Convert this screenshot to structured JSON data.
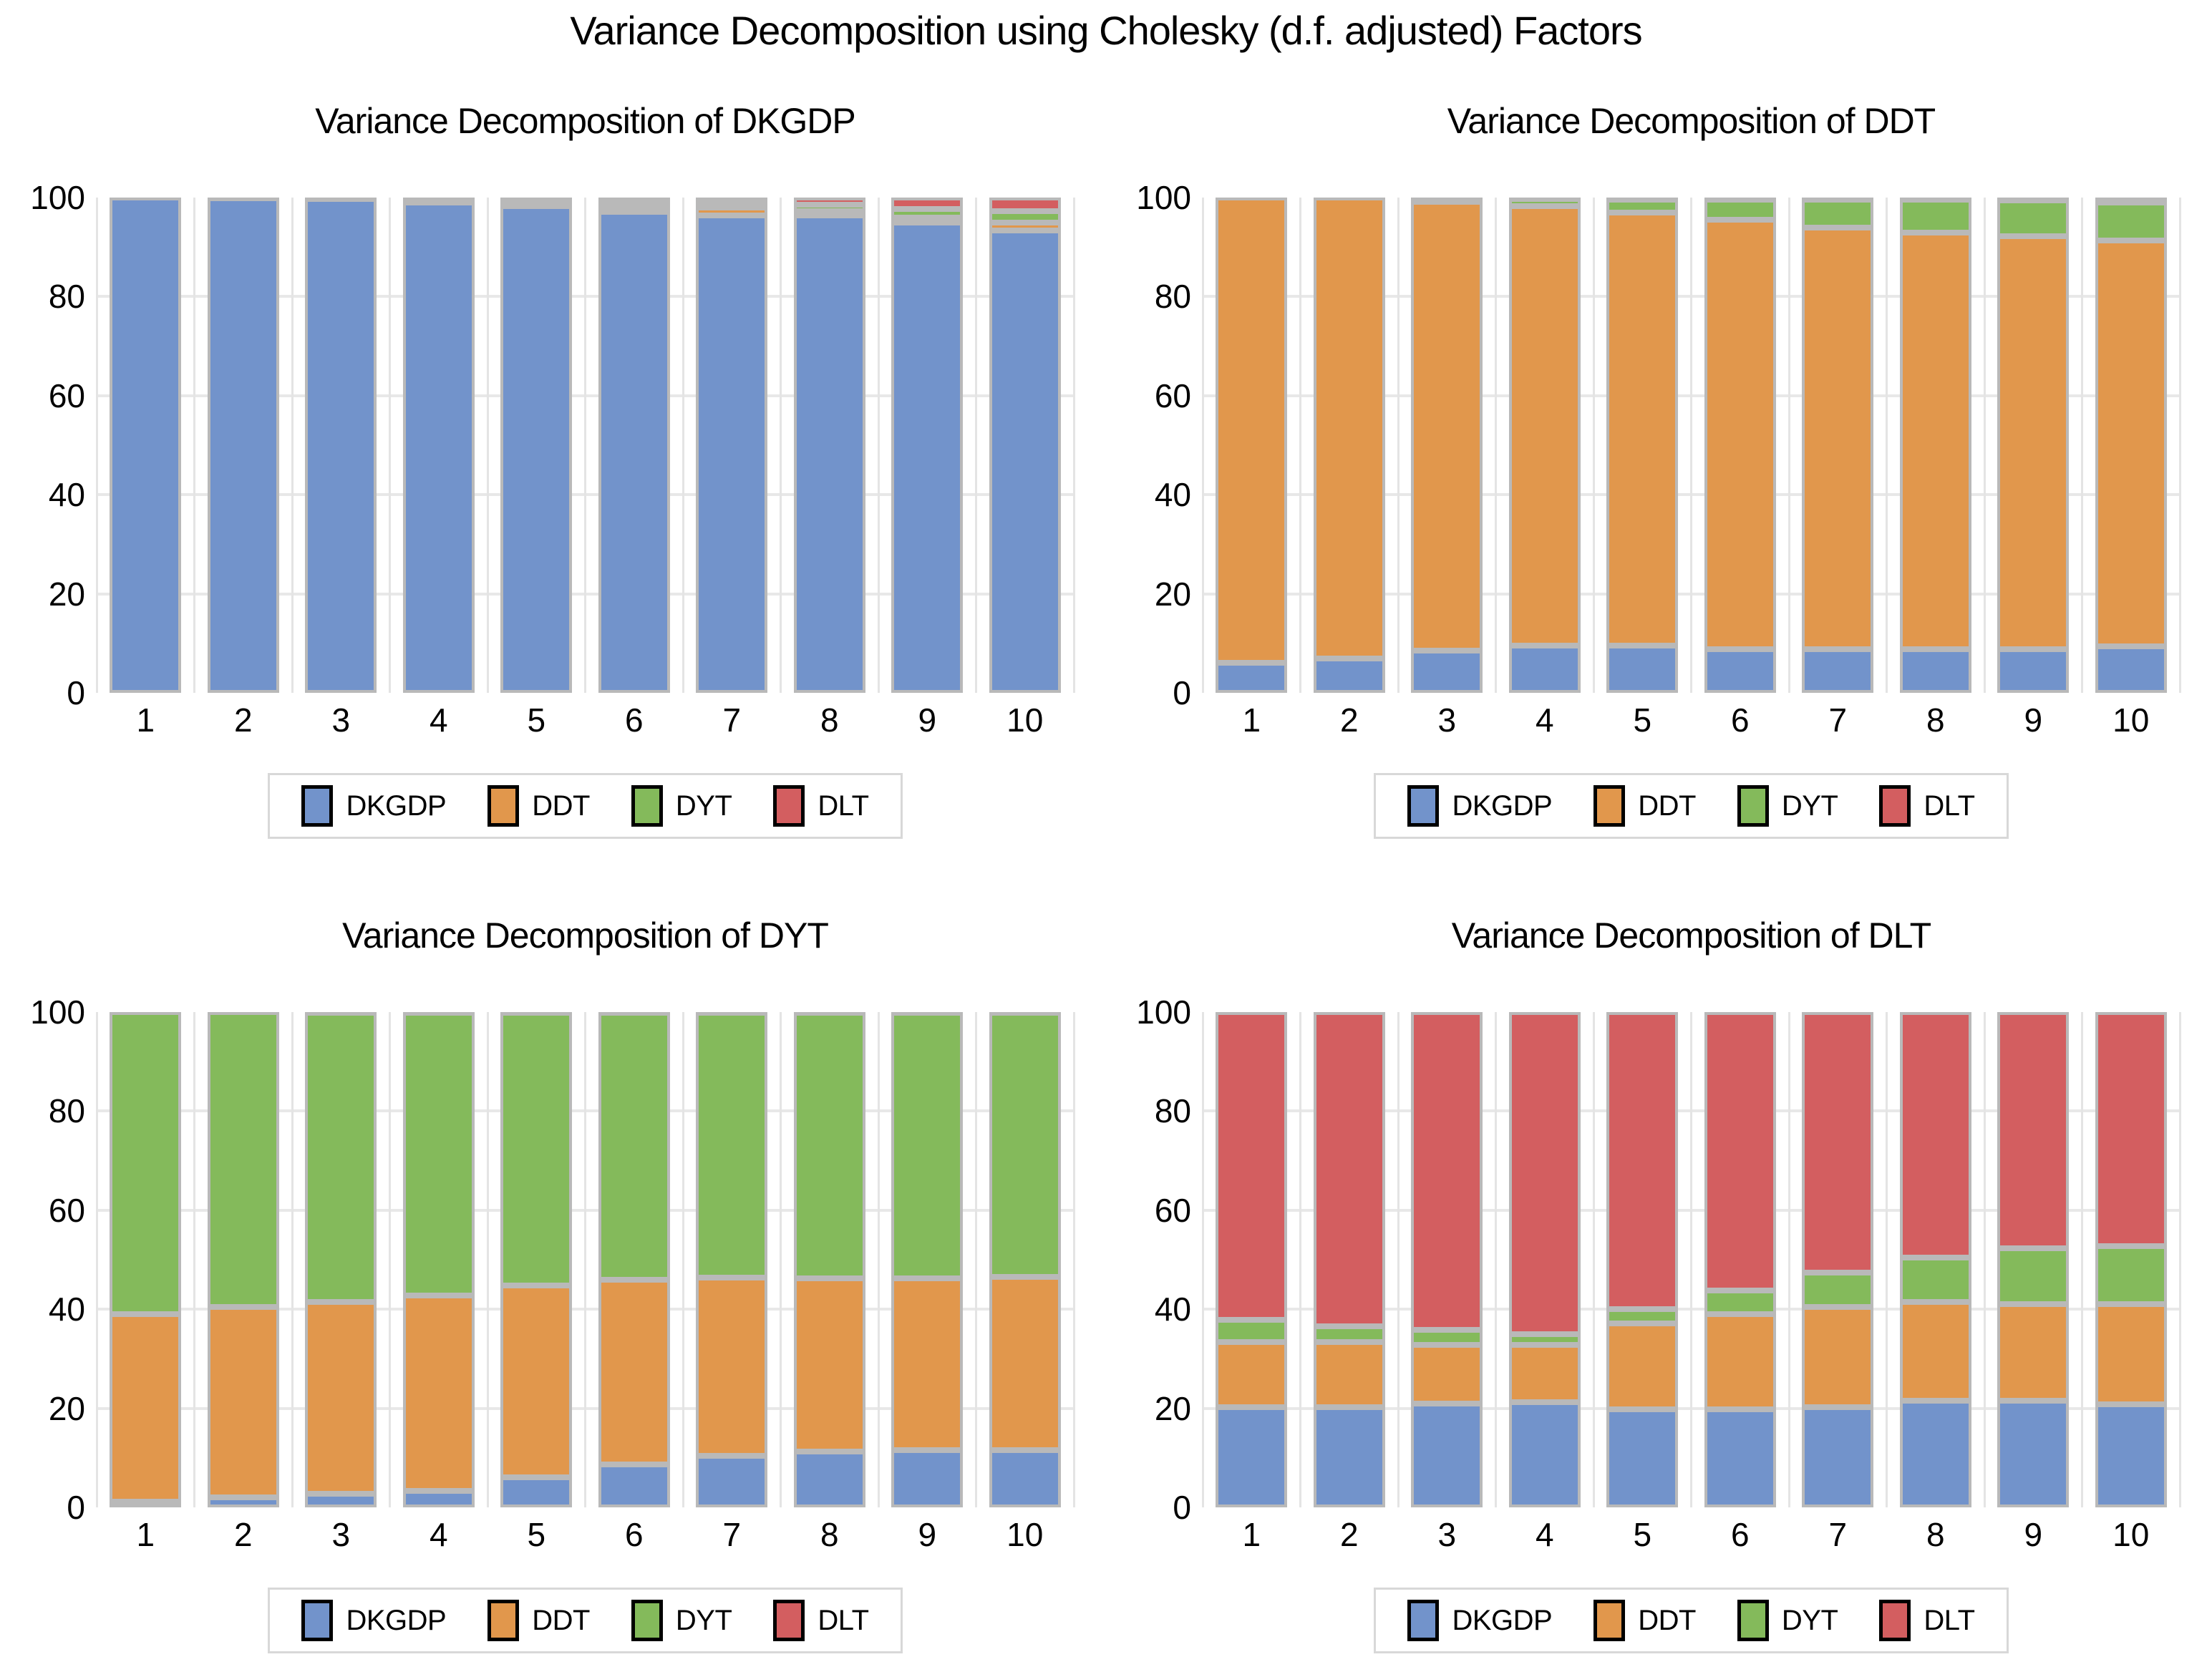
{
  "page_title": "Variance Decomposition using Cholesky (d.f. adjusted) Factors",
  "colors": {
    "DKGDP": "#7293cb",
    "DDT": "#e1974c",
    "DYT": "#84ba5b",
    "DLT": "#d35e60",
    "bar_border": "#b9b9b9",
    "gridline": "#e8e8e8",
    "legend_border": "#d8d8d8"
  },
  "legend_labels": [
    "DKGDP",
    "DDT",
    "DYT",
    "DLT"
  ],
  "chart_data": [
    {
      "type": "bar",
      "stacked": true,
      "title": "Variance Decomposition of DKGDP",
      "categories": [
        "1",
        "2",
        "3",
        "4",
        "5",
        "6",
        "7",
        "8",
        "9",
        "10"
      ],
      "xlabel": "",
      "ylabel": "",
      "ylim": [
        0,
        100
      ],
      "yticks": [
        0,
        20,
        40,
        60,
        80,
        100
      ],
      "grid": true,
      "legend_position": "bottom",
      "series": [
        {
          "name": "DKGDP",
          "color": "#7293cb",
          "values": [
            100,
            99.9,
            99.7,
            99.0,
            98.3,
            97.1,
            96.4,
            96.4,
            95.0,
            93.3
          ]
        },
        {
          "name": "DDT",
          "color": "#e1974c",
          "values": [
            0,
            0.1,
            0.2,
            0.5,
            0.7,
            1.2,
            1.6,
            0.8,
            1.0,
            1.7
          ]
        },
        {
          "name": "DYT",
          "color": "#84ba5b",
          "values": [
            0,
            0,
            0.05,
            0.25,
            0.5,
            0.8,
            1.0,
            1.3,
            1.7,
            2.2
          ]
        },
        {
          "name": "DLT",
          "color": "#d35e60",
          "values": [
            0,
            0,
            0.05,
            0.25,
            0.5,
            0.9,
            1.0,
            1.5,
            2.3,
            2.8
          ]
        }
      ]
    },
    {
      "type": "bar",
      "stacked": true,
      "title": "Variance Decomposition of DDT",
      "categories": [
        "1",
        "2",
        "3",
        "4",
        "5",
        "6",
        "7",
        "8",
        "9",
        "10"
      ],
      "xlabel": "",
      "ylabel": "",
      "ylim": [
        0,
        100
      ],
      "yticks": [
        0,
        20,
        40,
        60,
        80,
        100
      ],
      "grid": true,
      "legend_position": "bottom",
      "series": [
        {
          "name": "DKGDP",
          "color": "#7293cb",
          "values": [
            6.0,
            7.0,
            8.5,
            9.5,
            9.5,
            8.8,
            8.8,
            8.8,
            8.8,
            9.4
          ]
        },
        {
          "name": "DDT",
          "color": "#e1974c",
          "values": [
            94.0,
            93.0,
            90.6,
            88.8,
            87.4,
            86.7,
            85.2,
            84.1,
            83.4,
            81.9
          ]
        },
        {
          "name": "DYT",
          "color": "#84ba5b",
          "values": [
            0,
            0,
            0.6,
            1.4,
            2.7,
            4.1,
            5.6,
            6.6,
            7.2,
            7.7
          ]
        },
        {
          "name": "DLT",
          "color": "#d35e60",
          "values": [
            0,
            0,
            0.3,
            0.3,
            0.4,
            0.4,
            0.4,
            0.5,
            0.6,
            1.0
          ]
        }
      ]
    },
    {
      "type": "bar",
      "stacked": true,
      "title": "Variance Decomposition of DYT",
      "categories": [
        "1",
        "2",
        "3",
        "4",
        "5",
        "6",
        "7",
        "8",
        "9",
        "10"
      ],
      "xlabel": "",
      "ylabel": "",
      "ylim": [
        0,
        100
      ],
      "yticks": [
        0,
        20,
        40,
        60,
        80,
        100
      ],
      "grid": true,
      "legend_position": "bottom",
      "series": [
        {
          "name": "DKGDP",
          "color": "#7293cb",
          "values": [
            1.2,
            2.0,
            2.8,
            3.3,
            6.0,
            8.7,
            10.4,
            11.3,
            11.5,
            11.5
          ]
        },
        {
          "name": "DDT",
          "color": "#e1974c",
          "values": [
            37.8,
            38.5,
            38.7,
            39.5,
            38.8,
            37.3,
            36.0,
            34.9,
            34.7,
            35.0
          ]
        },
        {
          "name": "DYT",
          "color": "#84ba5b",
          "values": [
            61.0,
            59.5,
            58.4,
            57.1,
            55.0,
            53.8,
            53.4,
            53.6,
            53.6,
            53.3
          ]
        },
        {
          "name": "DLT",
          "color": "#d35e60",
          "values": [
            0,
            0,
            0.1,
            0.1,
            0.2,
            0.2,
            0.2,
            0.2,
            0.2,
            0.2
          ]
        }
      ]
    },
    {
      "type": "bar",
      "stacked": true,
      "title": "Variance Decomposition of DLT",
      "categories": [
        "1",
        "2",
        "3",
        "4",
        "5",
        "6",
        "7",
        "8",
        "9",
        "10"
      ],
      "xlabel": "",
      "ylabel": "",
      "ylim": [
        0,
        100
      ],
      "yticks": [
        0,
        20,
        40,
        60,
        80,
        100
      ],
      "grid": true,
      "legend_position": "bottom",
      "series": [
        {
          "name": "DKGDP",
          "color": "#7293cb",
          "values": [
            20.3,
            20.2,
            21.0,
            21.3,
            19.8,
            19.8,
            20.2,
            21.5,
            21.5,
            20.8
          ]
        },
        {
          "name": "DDT",
          "color": "#e1974c",
          "values": [
            13.1,
            13.2,
            11.8,
            11.5,
            17.4,
            19.2,
            20.3,
            20.0,
            19.5,
            20.2
          ]
        },
        {
          "name": "DYT",
          "color": "#84ba5b",
          "values": [
            4.4,
            3.1,
            3.0,
            2.2,
            2.8,
            4.8,
            6.9,
            8.9,
            11.3,
            11.7
          ]
        },
        {
          "name": "DLT",
          "color": "#d35e60",
          "values": [
            62.2,
            63.5,
            64.2,
            65.0,
            60.0,
            56.2,
            52.6,
            49.6,
            47.7,
            47.3
          ]
        }
      ]
    }
  ]
}
